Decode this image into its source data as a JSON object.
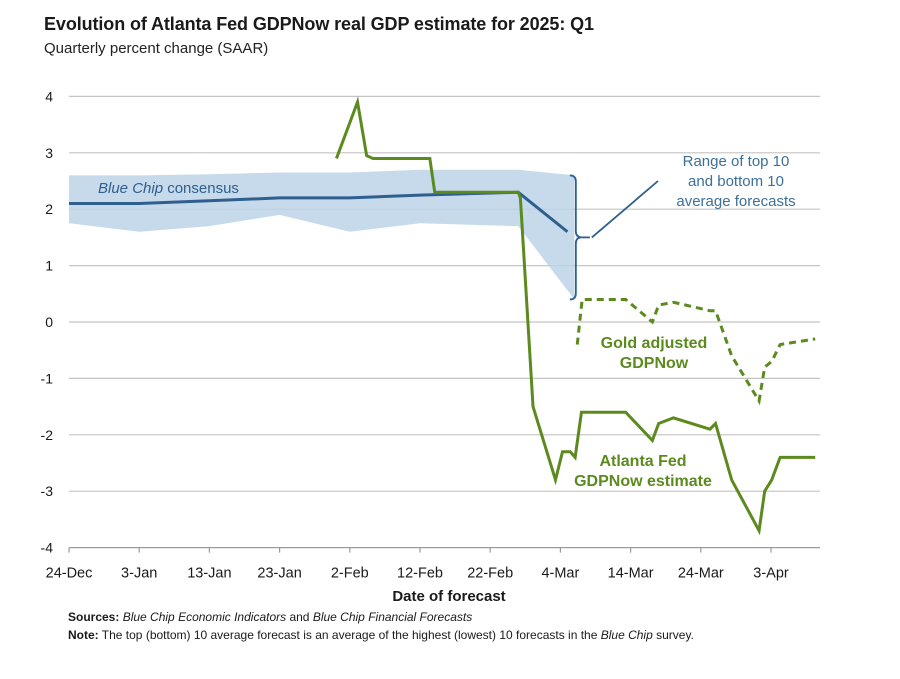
{
  "chart_data": {
    "type": "line",
    "title": "Evolution of Atlanta Fed GDPNow real GDP estimate for 2025: Q1",
    "subtitle": "Quarterly percent change (SAAR)",
    "xlabel": "Date of forecast",
    "ylabel": "",
    "x_origin_date": "24-Dec",
    "x_unit": "days since 24-Dec",
    "xlim": [
      0,
      107
    ],
    "ylim": [
      -4,
      4
    ],
    "yticks": [
      4,
      3,
      2,
      1,
      0,
      -1,
      -2,
      -3,
      -4
    ],
    "ytick_labels": [
      "4",
      "3",
      "2",
      "1",
      "0",
      "-1",
      "-2",
      "-3",
      "-4"
    ],
    "xticks": [
      0,
      10,
      20,
      30,
      40,
      50,
      60,
      70,
      80,
      90,
      100
    ],
    "xtick_labels": [
      "24-Dec",
      "3-Jan",
      "13-Jan",
      "23-Jan",
      "2-Feb",
      "12-Feb",
      "22-Feb",
      "4-Mar",
      "14-Mar",
      "24-Mar",
      "3-Apr"
    ],
    "grid": true,
    "series": [
      {
        "name": "Blue Chip consensus",
        "style": "solid",
        "color": "#2e5f8e",
        "x": [
          0,
          10,
          20,
          30,
          40,
          50,
          64,
          71
        ],
        "y": [
          2.1,
          2.1,
          2.15,
          2.2,
          2.2,
          2.25,
          2.3,
          1.6
        ]
      },
      {
        "name": "Range of top 10 and bottom 10 average forecasts",
        "style": "band",
        "color": "#bcd3e8",
        "x": [
          0,
          10,
          20,
          30,
          40,
          50,
          64,
          72
        ],
        "upper": [
          2.6,
          2.6,
          2.62,
          2.65,
          2.65,
          2.7,
          2.7,
          2.6
        ],
        "lower": [
          1.75,
          1.6,
          1.7,
          1.9,
          1.6,
          1.75,
          1.7,
          0.4
        ]
      },
      {
        "name": "Atlanta Fed GDPNow estimate",
        "style": "solid",
        "color": "#5c8a1e",
        "x": [
          38.1,
          41.1,
          42.4,
          43.3,
          51.4,
          52.1,
          64,
          64.3,
          66.1,
          69.3,
          70.3,
          71.4,
          72.1,
          73.0,
          79.3,
          83.1,
          84.0,
          86.1,
          91.3,
          92.1,
          94.4,
          98.3,
          99.1,
          100.1,
          101.3,
          106.3
        ],
        "y": [
          2.9,
          3.9,
          2.95,
          2.9,
          2.9,
          2.3,
          2.3,
          2.2,
          -1.5,
          -2.8,
          -2.3,
          -2.3,
          -2.4,
          -1.6,
          -1.6,
          -2.1,
          -1.8,
          -1.7,
          -1.9,
          -1.8,
          -2.8,
          -3.7,
          -3.0,
          -2.8,
          -2.4,
          -2.4
        ]
      },
      {
        "name": "Gold adjusted GDPNow",
        "style": "dashed",
        "color": "#5c8a1e",
        "x": [
          72.4,
          73.1,
          79.3,
          83.1,
          84.0,
          86.1,
          91.3,
          92.1,
          94.4,
          98.3,
          99.1,
          100.1,
          101.3,
          106.3
        ],
        "y": [
          -0.4,
          0.4,
          0.4,
          0.0,
          0.3,
          0.35,
          0.2,
          0.2,
          -0.6,
          -1.4,
          -0.8,
          -0.7,
          -0.4,
          -0.3
        ]
      }
    ],
    "annotations": [
      {
        "text": "Blue Chip consensus",
        "italic_part": "Blue Chip",
        "color": "#2e5f8e"
      },
      {
        "text": "Range of top 10 and bottom 10 average forecasts",
        "lines": [
          "Range of top 10",
          "and bottom 10",
          "average forecasts"
        ],
        "color": "#3d6f99"
      },
      {
        "text": "Gold adjusted GDPNow",
        "lines": [
          "Gold adjusted",
          "GDPNow"
        ],
        "color": "#5c8a1e"
      },
      {
        "text": "Atlanta Fed GDPNow estimate",
        "lines": [
          "Atlanta Fed",
          "GDPNow estimate"
        ],
        "color": "#5c8a1e"
      }
    ]
  },
  "footer": {
    "sources_label": "Sources:",
    "sources_text_1": "Blue Chip Economic Indicators",
    "sources_text_2": " and ",
    "sources_text_3": "Blue Chip Financial Forecasts",
    "note_label": "Note:",
    "note_text_1": " The top (bottom) 10 average forecast is an average of the highest (lowest) 10 forecasts in the ",
    "note_text_2": "Blue Chip",
    "note_text_3": " survey."
  }
}
